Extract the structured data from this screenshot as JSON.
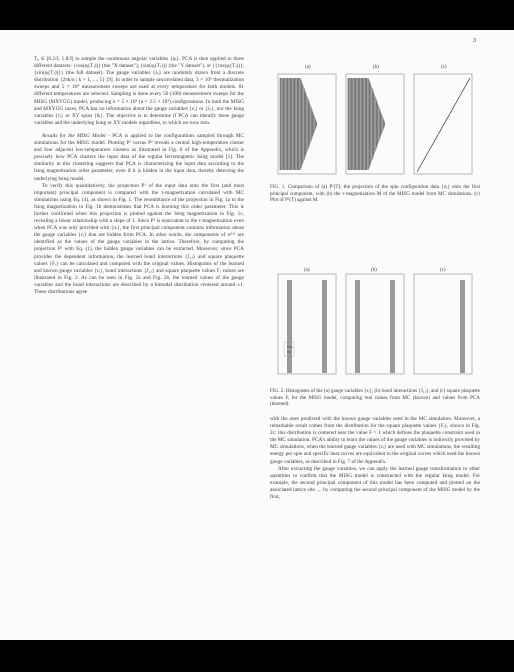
{
  "page_number": "3",
  "left_column": {
    "p1": "T₀ ∈ [0.2/J, 1.8/J] to sample the continuous angular variables {φᵢ}. PCA is then applied to three different datasets: {cos(φᵢ(Tⱼ))} (the \"X dataset\"), {sin(φᵢ(Tⱼ))} (the \"Y dataset\"), or {{cos(φᵢ(Tⱼ))}, {sin(φᵢ(Tⱼ))}} (the full dataset). The gauge variables {λᵢ} are randomly drawn from a discrete distribution {2πk/n | k = 1, ..., 5} [9]. In order to sample uncorrelated data, 3 × 10⁵ thermalization sweeps and 5 × 10⁴ measurement sweeps are used at every temperature for both models. 81 different temperatures are selected. Sampling is done every 50 (100) measurement sweeps for the MISG (MXYGG) model, producing n = 5 × 10⁴ (n = 2.5 × 10⁴) configurations. In both the MISG and MXYGG cases, PCA has no information about the gauge variables {εᵢ} or {λᵢ}, nor the Ising variables {τᵢ} or XY spins {θᵢ}. The objective is to determine if PCA can identify these gauge variables and the underlying Ising or XY models regardless, to which we now turn.",
    "p2_head": "Results for the MISG Model",
    "p2": " - PCA is applied to the configurations sampled through MC simulations for the MISG model. Plotting P¹ versus P² reveals a central high-temperature cluster and four adjacent low-temperature clusters as illustrated in Fig. 8 of the Appendix, which is precisely how PCA clusters the input data of the regular ferromagnetic Ising model [1]. The similarity in this clustering suggests that PCA is characterizing the input data according to the Ising magnetization order parameter, even if it is hidden in the input data, thereby detecting the underlying Ising model.",
    "p3": "To verify this quantitatively, the projection P¹ of the input data onto the first (and most important) principal component is compared with the τ-magnetization calculated with MC simulations using Eq. (4), as shown in Fig. 1. The resemblance of the projection in Fig. 1a to the Ising magnetization in Fig. 1b demonstrates that PCA is learning this order parameter. This is further confirmed when this projection is plotted against the Ising magnetization in Fig. 1c, revealing a linear relationship with a slope of 1. Since P¹ is equivalent to the τ-magnetization even when PCA was only provided with {σᵢ}, the first principal component contains information about the gauge variables {εᵢ} that are hidden from PCA. In other words, the components of w⁽¹⁾ are identified as the values of the gauge variables in the lattice. Therefore, by computing the projection P¹ with Eq. (1), the hidden gauge variables can be extracted. Moreover, since PCA provides the dependent information, the learned bond interactions {J₁ⱼ} and square plaquette values {Fᵢ} can be calculated and compared with the original values. Histograms of the learned and known gauge variables {εᵢ}, bond interactions {J₁ⱼ} and square plaquette values Fᵢ values are illustrated in Fig. 2. As can be seen in Fig. 2a and Fig. 2b, the learned values of the gauge variables and the bond interactions are described by a bimodal distribution centered around ±1. These distributions agree"
  },
  "figure1": {
    "panel_labels": [
      "(a)",
      "(b)",
      "(c)"
    ],
    "caption_label": "FIG. 1.",
    "caption": " Comparison of (a) P¹(T), the projection of the spin configuration data {σᵢ} onto the first principal component, with (b) the τ-magnetization M of the MISG model from MC simulations. (c) Plot of P¹(T) against M."
  },
  "figure2": {
    "panel_labels": [
      "(a)",
      "(b)",
      "(c)"
    ],
    "legend_entries": [
      "PCA",
      "MC"
    ],
    "caption_label": "FIG. 2.",
    "caption": " Histograms of the (a) gauge variables {εᵢ}, (b) bond interactions {J₁ⱼ}, and (c) square plaquette values Fᵢ for the MISG model, comparing real values from MC (known) and values from PCA (learned)."
  },
  "right_column": {
    "p1": "with the ones predicted with the known gauge variables used in the MC simulation. Moreover, a remarkable result comes from the distribution for the square plaquette values {Fᵢ}, shown in Fig. 2c: this distribution is centered near the value F = 1 which defines the plaquette constraint used in the MC simulation. PCA's ability to learn the values of the gauge variables is indirectly provided by MC simulations, when the learned gauge variables {εᵢ} are used with MC simulations, the resulting energy per spin and specific heat curves are equivalent to the original curves which used the known gauge variables, as described in Fig. 7 of the Appendix.",
    "p2": "After extracting the gauge variables, we can apply the learned gauge transformation to other quantities to confirm that the MISG model is constructed with the regular Ising model. For example, the second principal component of this model has been computed and plotted on the associated lattice site. ... by computing the second principal component of the MISG model by the first,"
  }
}
